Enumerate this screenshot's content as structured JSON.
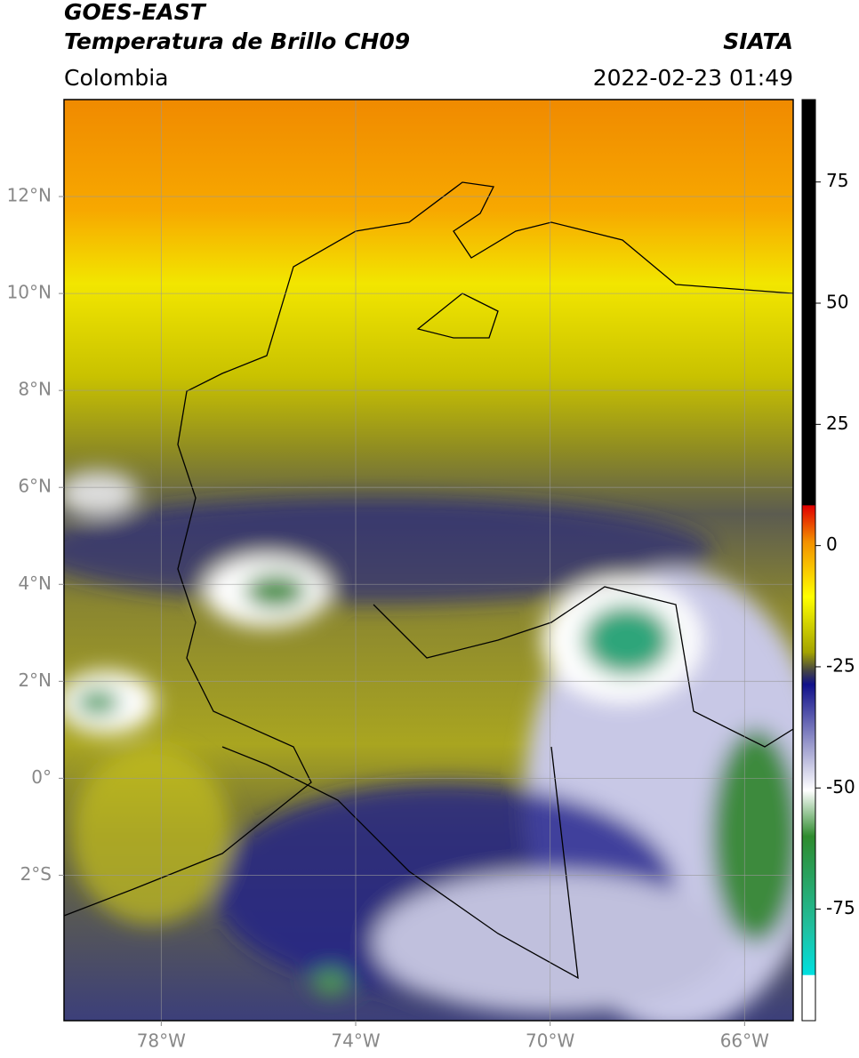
{
  "header": {
    "title": "GOES-EAST",
    "subtitle": "Temperatura de Brillo CH09",
    "source": "SIATA",
    "region": "Colombia",
    "datetime": "2022-02-23 01:49"
  },
  "map": {
    "xlim": [
      -80,
      -65
    ],
    "ylim": [
      -5,
      14
    ],
    "xticks": [
      {
        "value": -78,
        "label": "78°W"
      },
      {
        "value": -74,
        "label": "74°W"
      },
      {
        "value": -70,
        "label": "70°W"
      },
      {
        "value": -66,
        "label": "66°W"
      }
    ],
    "yticks": [
      {
        "value": 12,
        "label": "12°N"
      },
      {
        "value": 10,
        "label": "10°N"
      },
      {
        "value": 8,
        "label": "8°N"
      },
      {
        "value": 6,
        "label": "6°N"
      },
      {
        "value": 4,
        "label": "4°N"
      },
      {
        "value": 2,
        "label": "2°N"
      },
      {
        "value": 0,
        "label": "0°"
      },
      {
        "value": -2,
        "label": "2°S"
      }
    ],
    "grid": true
  },
  "colorbar": {
    "lim": [
      -98,
      92
    ],
    "ticks": [
      75,
      50,
      25,
      0,
      -25,
      -50,
      -75
    ]
  }
}
